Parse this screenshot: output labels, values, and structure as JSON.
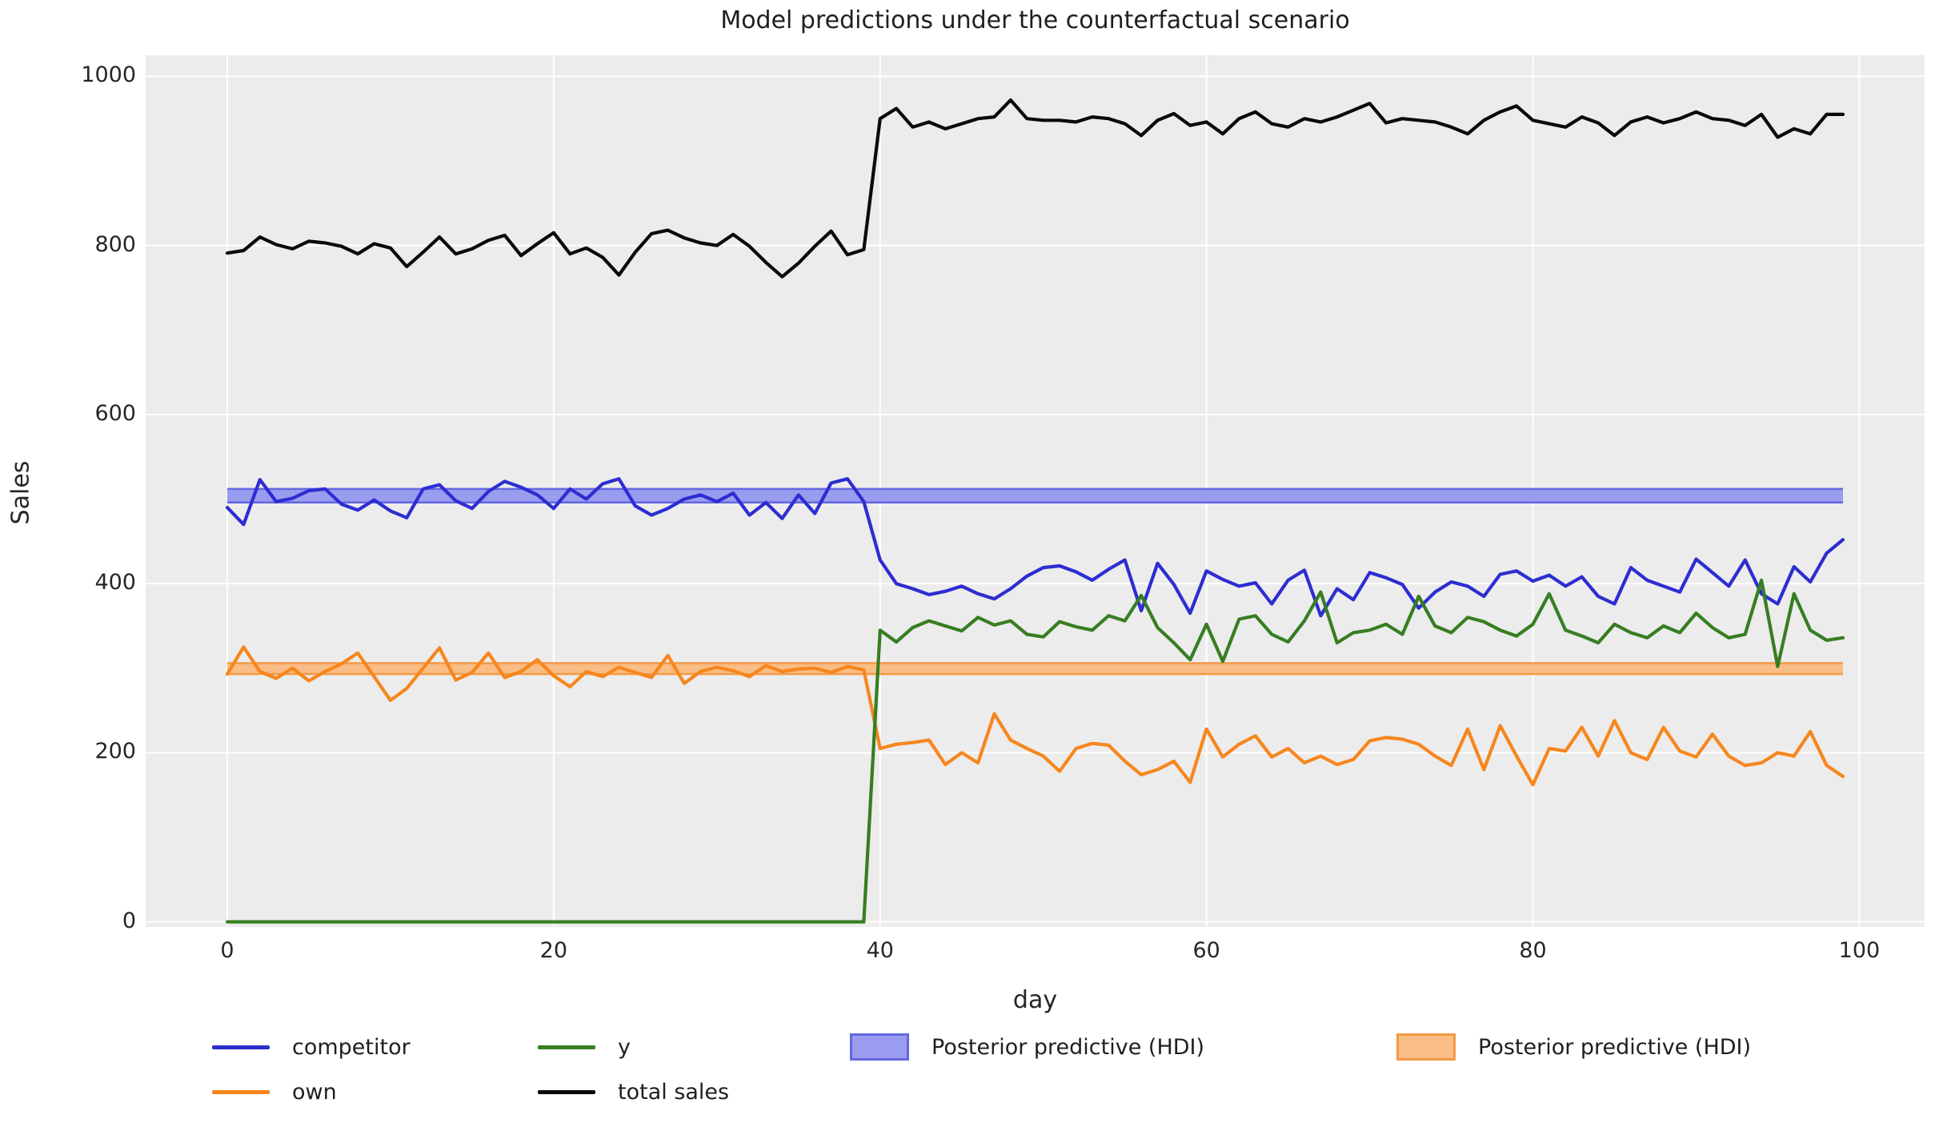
{
  "chart_data": {
    "type": "line",
    "title": "Model predictions under the counterfactual scenario",
    "xlabel": "day",
    "ylabel": "Sales",
    "xlim": [
      -5,
      104
    ],
    "ylim": [
      -6,
      1025
    ],
    "x_ticks": [
      0,
      20,
      40,
      60,
      80,
      100
    ],
    "y_ticks": [
      0,
      200,
      400,
      600,
      800,
      1000
    ],
    "grid": true,
    "plot_background": "#ececec",
    "gridline_color": "#ffffff",
    "legend_position": "below",
    "x_range": [
      0,
      99
    ],
    "series": [
      {
        "name": "competitor",
        "color": "#2d2dd2",
        "values": [
          490,
          470,
          523,
          497,
          501,
          510,
          512,
          494,
          487,
          499,
          486,
          478,
          512,
          517,
          498,
          489,
          509,
          521,
          514,
          505,
          489,
          512,
          500,
          518,
          524,
          492,
          481,
          489,
          500,
          505,
          497,
          507,
          481,
          496,
          477,
          505,
          483,
          519,
          524,
          497,
          428,
          400,
          394,
          387,
          391,
          397,
          388,
          382,
          394,
          409,
          419,
          421,
          414,
          404,
          417,
          428,
          368,
          424,
          399,
          365,
          415,
          405,
          397,
          401,
          376,
          404,
          416,
          362,
          394,
          381,
          413,
          407,
          399,
          371,
          390,
          402,
          397,
          385,
          411,
          415,
          403,
          410,
          397,
          408,
          385,
          376,
          419,
          404,
          397,
          390,
          429,
          413,
          397,
          428,
          388,
          376,
          420,
          402,
          436,
          452
        ]
      },
      {
        "name": "own",
        "color": "#f7861d",
        "values": [
          293,
          325,
          296,
          288,
          300,
          285,
          296,
          305,
          318,
          290,
          262,
          276,
          300,
          324,
          286,
          295,
          318,
          289,
          296,
          310,
          291,
          278,
          296,
          290,
          301,
          295,
          289,
          315,
          282,
          296,
          301,
          297,
          290,
          303,
          296,
          299,
          300,
          295,
          302,
          298,
          205,
          210,
          212,
          215,
          186,
          200,
          188,
          246,
          215,
          205,
          196,
          178,
          205,
          211,
          209,
          190,
          174,
          180,
          190,
          165,
          228,
          195,
          210,
          220,
          195,
          205,
          188,
          196,
          186,
          192,
          214,
          218,
          216,
          210,
          196,
          185,
          228,
          180,
          232,
          196,
          162,
          205,
          202,
          230,
          196,
          238,
          200,
          192,
          230,
          202,
          195,
          222,
          196,
          185,
          188,
          200,
          196,
          225,
          185,
          172
        ]
      },
      {
        "name": "y",
        "color": "#377e22",
        "values": [
          0,
          0,
          0,
          0,
          0,
          0,
          0,
          0,
          0,
          0,
          0,
          0,
          0,
          0,
          0,
          0,
          0,
          0,
          0,
          0,
          0,
          0,
          0,
          0,
          0,
          0,
          0,
          0,
          0,
          0,
          0,
          0,
          0,
          0,
          0,
          0,
          0,
          0,
          0,
          0,
          345,
          331,
          348,
          356,
          350,
          344,
          360,
          351,
          356,
          340,
          337,
          355,
          349,
          345,
          362,
          356,
          386,
          348,
          330,
          310,
          352,
          308,
          358,
          362,
          340,
          331,
          356,
          390,
          330,
          342,
          345,
          352,
          340,
          385,
          350,
          342,
          360,
          355,
          345,
          338,
          352,
          388,
          345,
          338,
          330,
          352,
          342,
          336,
          350,
          342,
          365,
          348,
          336,
          340,
          404,
          302,
          388,
          345,
          333,
          336
        ]
      },
      {
        "name": "total sales",
        "color": "#0a0a0a",
        "values": [
          791,
          794,
          810,
          801,
          796,
          805,
          803,
          799,
          790,
          802,
          797,
          775,
          792,
          810,
          790,
          796,
          806,
          812,
          788,
          802,
          815,
          790,
          797,
          786,
          765,
          792,
          814,
          818,
          809,
          803,
          800,
          813,
          799,
          780,
          763,
          779,
          799,
          817,
          789,
          795,
          950,
          962,
          940,
          946,
          938,
          944,
          950,
          952,
          972,
          950,
          948,
          948,
          946,
          952,
          950,
          944,
          930,
          948,
          956,
          942,
          946,
          932,
          950,
          958,
          944,
          940,
          950,
          946,
          952,
          960,
          968,
          945,
          950,
          948,
          946,
          940,
          932,
          948,
          958,
          965,
          948,
          944,
          940,
          952,
          945,
          930,
          946,
          952,
          945,
          950,
          958,
          950,
          948,
          942,
          955,
          928,
          938,
          932,
          955,
          955
        ]
      }
    ],
    "bands": [
      {
        "name": "Posterior predictive (HDI)",
        "series": "competitor",
        "lo": 496,
        "hi": 512,
        "fill": "#9a9cf0",
        "edge": "#6468e0"
      },
      {
        "name": "Posterior predictive (HDI)",
        "series": "own",
        "lo": 293,
        "hi": 306,
        "fill": "#f9bd85",
        "edge": "#f39a45"
      }
    ]
  },
  "legend": {
    "items": [
      {
        "kind": "line",
        "label": "competitor",
        "color": "#2d2dd2"
      },
      {
        "kind": "line",
        "label": "own",
        "color": "#f7861d"
      },
      {
        "kind": "line",
        "label": "y",
        "color": "#377e22"
      },
      {
        "kind": "line",
        "label": "total sales",
        "color": "#0a0a0a"
      },
      {
        "kind": "patch",
        "label": "Posterior predictive (HDI)",
        "fill": "#9a9cf0",
        "edge": "#6468e0"
      },
      {
        "kind": "patch",
        "label": "Posterior predictive (HDI)",
        "fill": "#f9bd85",
        "edge": "#f39a45"
      }
    ]
  }
}
